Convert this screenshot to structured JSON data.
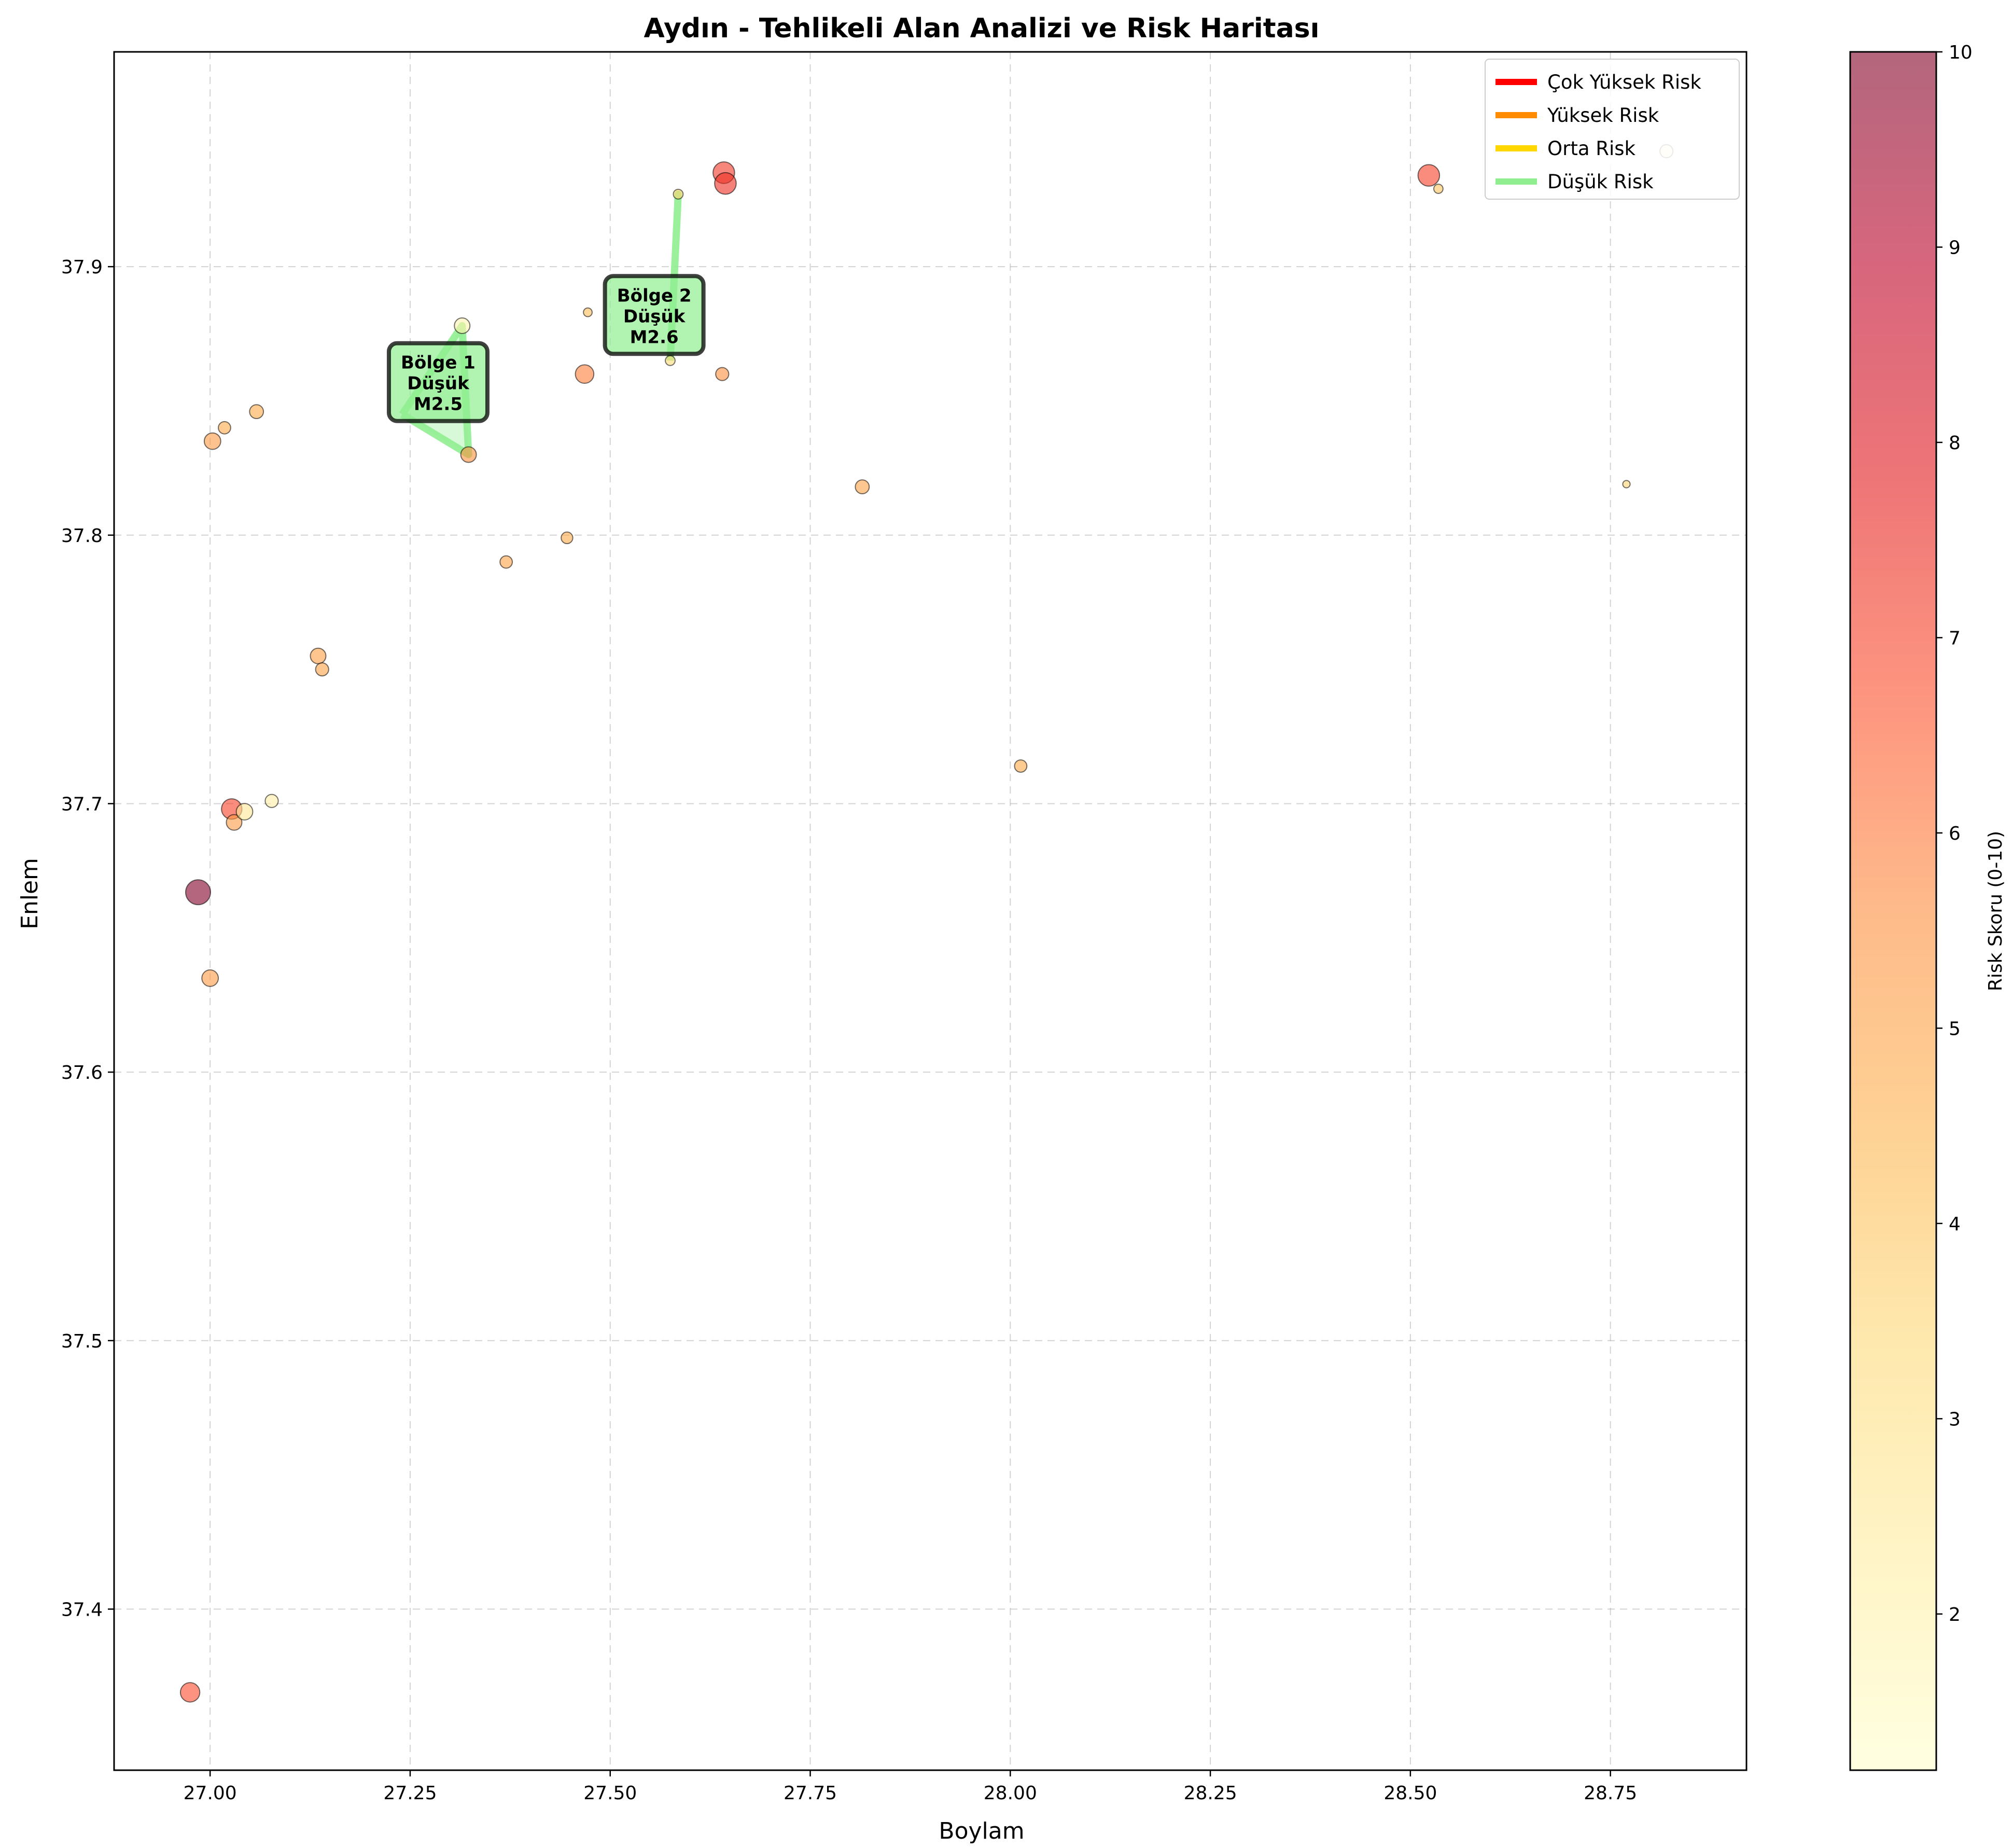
{
  "chart_data": {
    "type": "scatter",
    "title": "Aydın - Tehlikeli Alan Analizi ve Risk Haritası",
    "xlabel": "Boylam",
    "ylabel": "Enlem",
    "xlim": [
      26.88,
      28.92
    ],
    "ylim": [
      37.34,
      37.98
    ],
    "x_ticks": [
      27.0,
      27.25,
      27.5,
      27.75,
      28.0,
      28.25,
      28.5,
      28.75
    ],
    "x_tick_labels": [
      "27.00",
      "27.25",
      "27.50",
      "27.75",
      "28.00",
      "28.25",
      "28.50",
      "28.75"
    ],
    "y_ticks": [
      37.4,
      37.5,
      37.6,
      37.7,
      37.8,
      37.9
    ],
    "y_tick_labels": [
      "37.4",
      "37.5",
      "37.6",
      "37.7",
      "37.8",
      "37.9"
    ],
    "grid": true,
    "colorbar": {
      "label": "Risk Skoru (0-10)",
      "range": [
        1.2,
        10
      ],
      "ticks": [
        2,
        3,
        4,
        5,
        6,
        7,
        8,
        9,
        10
      ],
      "tick_labels": [
        "2",
        "3",
        "4",
        "5",
        "6",
        "7",
        "8",
        "9",
        "10"
      ],
      "colormap": [
        "#ffffcc",
        "#ffeda0",
        "#fed976",
        "#feb24c",
        "#fd8d3c",
        "#fc4e2a",
        "#e31a1c",
        "#bd0026",
        "#800026"
      ],
      "alpha": 0.6
    },
    "points": [
      {
        "x": 26.985,
        "y": 37.667,
        "risk": 10.0,
        "mag": 3.3
      },
      {
        "x": 26.975,
        "y": 37.369,
        "risk": 6.8,
        "mag": 2.8
      },
      {
        "x": 27.0,
        "y": 37.635,
        "risk": 5.2,
        "mag": 2.5
      },
      {
        "x": 27.003,
        "y": 37.835,
        "risk": 5.2,
        "mag": 2.5
      },
      {
        "x": 27.018,
        "y": 37.84,
        "risk": 4.8,
        "mag": 2.0
      },
      {
        "x": 27.058,
        "y": 37.846,
        "risk": 4.8,
        "mag": 2.2
      },
      {
        "x": 27.027,
        "y": 37.698,
        "risk": 7.0,
        "mag": 2.9
      },
      {
        "x": 27.03,
        "y": 37.693,
        "risk": 5.2,
        "mag": 2.4
      },
      {
        "x": 27.043,
        "y": 37.697,
        "risk": 2.6,
        "mag": 2.5
      },
      {
        "x": 27.077,
        "y": 37.701,
        "risk": 2.2,
        "mag": 2.1
      },
      {
        "x": 27.135,
        "y": 37.755,
        "risk": 5.1,
        "mag": 2.4
      },
      {
        "x": 27.14,
        "y": 37.75,
        "risk": 5.0,
        "mag": 2.1
      },
      {
        "x": 27.315,
        "y": 37.878,
        "risk": 2.0,
        "mag": 2.4
      },
      {
        "x": 27.323,
        "y": 37.83,
        "risk": 5.5,
        "mag": 2.4
      },
      {
        "x": 27.37,
        "y": 37.79,
        "risk": 5.0,
        "mag": 2.0
      },
      {
        "x": 27.446,
        "y": 37.799,
        "risk": 4.8,
        "mag": 1.9
      },
      {
        "x": 27.468,
        "y": 37.86,
        "risk": 5.9,
        "mag": 2.7
      },
      {
        "x": 27.472,
        "y": 37.883,
        "risk": 4.2,
        "mag": 1.4
      },
      {
        "x": 27.585,
        "y": 37.927,
        "risk": 3.5,
        "mag": 1.6
      },
      {
        "x": 27.575,
        "y": 37.865,
        "risk": 3.3,
        "mag": 1.6
      },
      {
        "x": 27.64,
        "y": 37.86,
        "risk": 5.5,
        "mag": 2.1
      },
      {
        "x": 27.642,
        "y": 37.935,
        "risk": 7.2,
        "mag": 3.0
      },
      {
        "x": 27.644,
        "y": 37.931,
        "risk": 7.4,
        "mag": 3.0
      },
      {
        "x": 27.815,
        "y": 37.818,
        "risk": 5.0,
        "mag": 2.2
      },
      {
        "x": 28.013,
        "y": 37.714,
        "risk": 4.8,
        "mag": 2.0
      },
      {
        "x": 28.523,
        "y": 37.934,
        "risk": 7.0,
        "mag": 3.0
      },
      {
        "x": 28.535,
        "y": 37.929,
        "risk": 4.0,
        "mag": 1.5
      },
      {
        "x": 28.77,
        "y": 37.819,
        "risk": 3.5,
        "mag": 1.0
      },
      {
        "x": 28.82,
        "y": 37.943,
        "risk": 2.0,
        "mag": 2.1
      }
    ],
    "zones": [
      {
        "label_lines": [
          "Bölge 1",
          "Düşük",
          "M2.5"
        ],
        "risk_class": "Düşük Risk",
        "color": "#90ee90",
        "label_at": {
          "x": 27.285,
          "y": 37.857
        },
        "polygon": [
          [
            27.24,
            37.845
          ],
          [
            27.323,
            37.83
          ],
          [
            27.315,
            37.878
          ],
          [
            27.24,
            37.845
          ]
        ]
      },
      {
        "label_lines": [
          "Bölge 2",
          "Düşük",
          "M2.6"
        ],
        "risk_class": "Düşük Risk",
        "color": "#90ee90",
        "label_at": {
          "x": 27.555,
          "y": 37.882
        },
        "polygon": [
          [
            27.575,
            37.865
          ],
          [
            27.585,
            37.927
          ],
          [
            27.575,
            37.865
          ]
        ]
      }
    ],
    "legend": {
      "position": "top-right",
      "entries": [
        {
          "label": "Çok Yüksek Risk",
          "color": "#ff0000"
        },
        {
          "label": "Yüksek Risk",
          "color": "#ff8c00"
        },
        {
          "label": "Orta Risk",
          "color": "#ffd700"
        },
        {
          "label": "Düşük Risk",
          "color": "#90ee90"
        }
      ]
    }
  }
}
